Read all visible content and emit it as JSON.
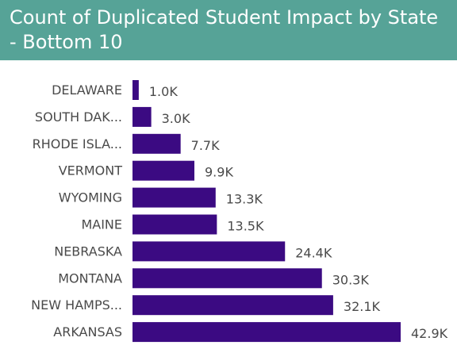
{
  "header": {
    "title": "Count of Duplicated Student Impact by State - Bottom 10"
  },
  "colors": {
    "header_bg": "#56a397",
    "bar": "#3b0a82",
    "text": "#4a4a4a"
  },
  "chart_data": {
    "type": "bar",
    "orientation": "horizontal",
    "title": "Count of Duplicated Student Impact by State - Bottom 10",
    "categories": [
      "DELAWARE",
      "SOUTH DAK...",
      "RHODE ISLA...",
      "VERMONT",
      "WYOMING",
      "MAINE",
      "NEBRASKA",
      "MONTANA",
      "NEW HAMPS...",
      "ARKANSAS"
    ],
    "values": [
      1000,
      3000,
      7700,
      9900,
      13300,
      13500,
      24400,
      30300,
      32100,
      42900
    ],
    "data_labels": [
      "1.0K",
      "3.0K",
      "7.7K",
      "9.9K",
      "13.3K",
      "13.5K",
      "24.4K",
      "30.3K",
      "32.1K",
      "42.9K"
    ],
    "xlim": [
      0,
      42900
    ],
    "grid": false,
    "legend": "none"
  }
}
